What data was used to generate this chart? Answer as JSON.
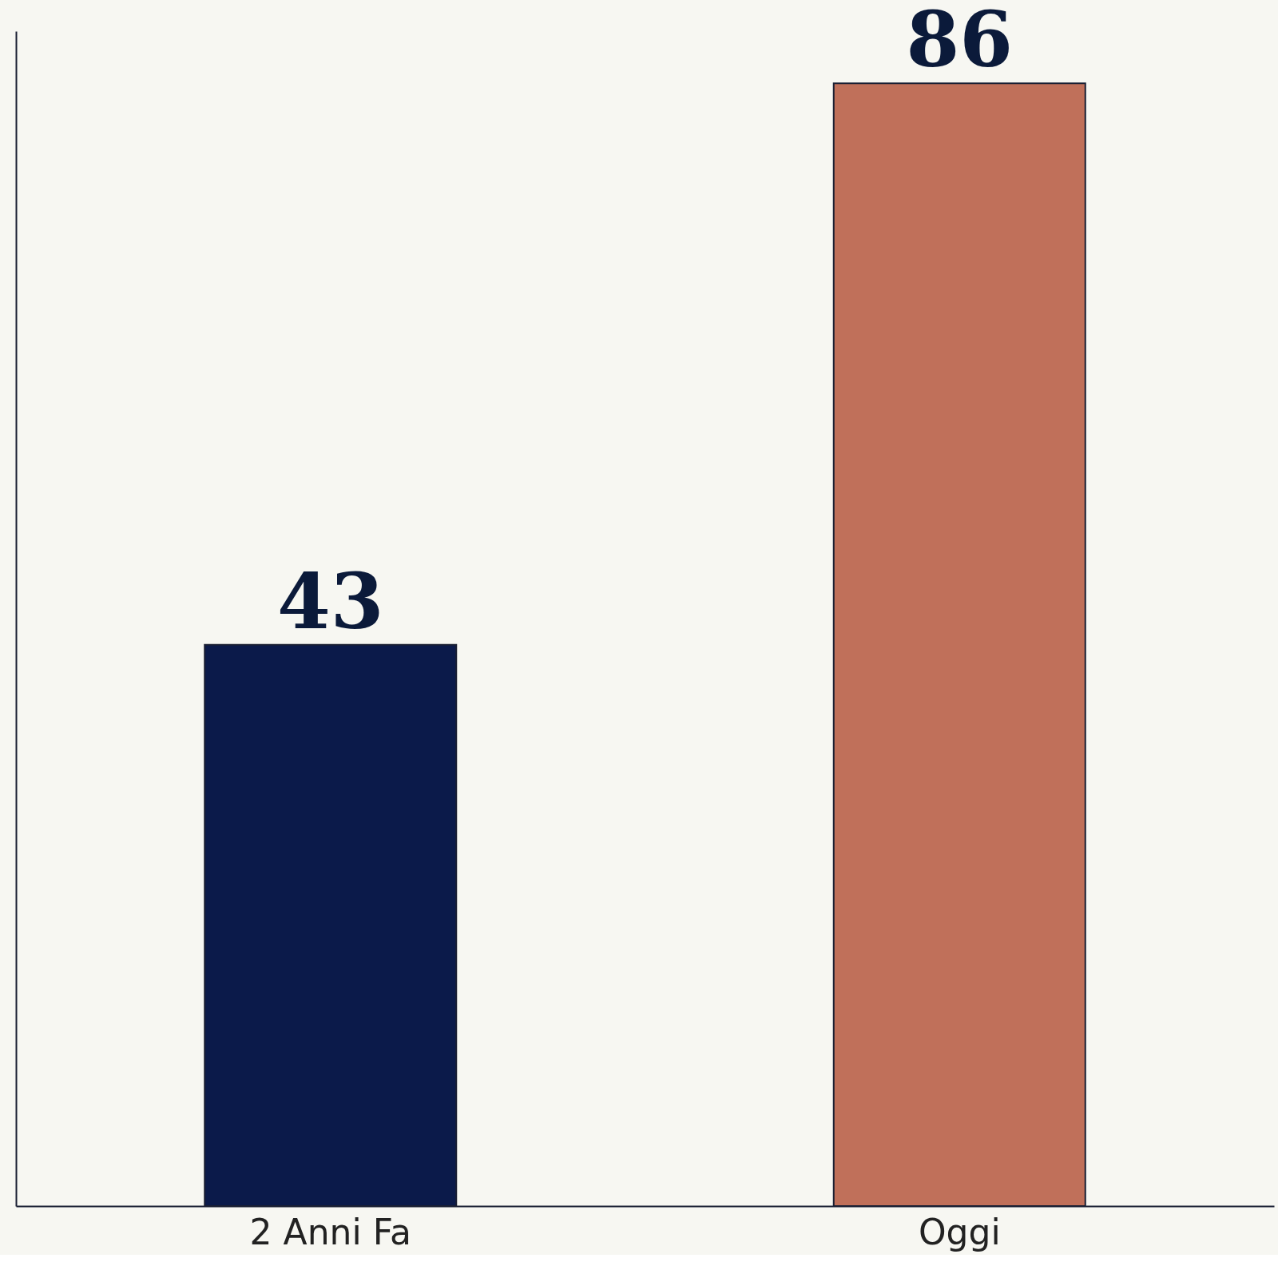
{
  "chart_data": {
    "type": "bar",
    "categories": [
      "2 Anni Fa",
      "Oggi"
    ],
    "values": [
      43,
      86
    ],
    "colors": [
      "#0b1a4a",
      "#c0705a"
    ],
    "data_labels": true
  }
}
